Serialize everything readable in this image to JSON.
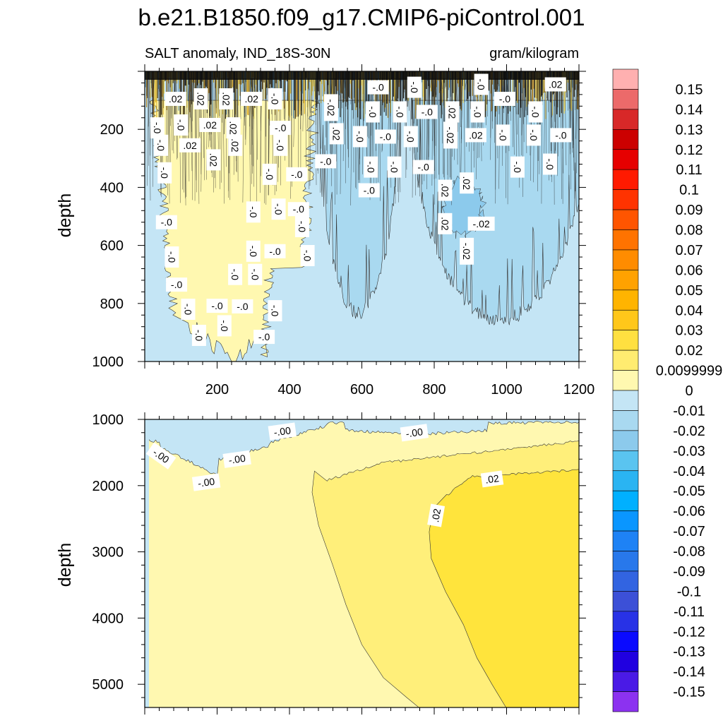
{
  "figure": {
    "title": "b.e21.B1850.f09_g17.CMIP6-piControl.001",
    "variable_label": "SALT anomaly, IND_18S-30N",
    "units_label": "gram/kilogram"
  },
  "chart_data": [
    {
      "type": "contour",
      "panel": "upper",
      "title": "SALT anomaly, IND_18S-30N",
      "units": "gram/kilogram",
      "xlabel": "",
      "ylabel": "depth",
      "xlim": [
        0,
        1200
      ],
      "ylim": [
        1000,
        0
      ],
      "x_ticks": [
        200,
        400,
        600,
        800,
        1000,
        1200
      ],
      "y_ticks": [
        200,
        400,
        600,
        800,
        1000
      ],
      "regions": [
        {
          "name": "background",
          "level": -0.01,
          "color": "#c4e5f5"
        },
        {
          "name": "surface-noise",
          "level": 0.02,
          "color": "#7a5a10",
          "depth_range": [
            0,
            100
          ]
        },
        {
          "name": "positive-left",
          "level": 0.0099999,
          "color": "#fff8b0",
          "x_range": [
            20,
            470
          ],
          "depth_range": [
            100,
            1000
          ]
        },
        {
          "name": "neg-mid",
          "level": -0.02,
          "color": "#a9d9f0",
          "x_range": [
            500,
            690
          ],
          "depth_range": [
            100,
            830
          ]
        },
        {
          "name": "neg-right",
          "level": -0.02,
          "color": "#a9d9f0",
          "x_range": [
            760,
            1200
          ],
          "depth_range": [
            100,
            860
          ]
        },
        {
          "name": "neg-right-core",
          "level": -0.03,
          "color": "#8ccaec",
          "x_range": [
            820,
            950
          ],
          "depth_range": [
            400,
            580
          ]
        }
      ],
      "contour_labels": [
        {
          "text": ".02",
          "x": 85,
          "depth": 95
        },
        {
          "text": ".02",
          "x": 155,
          "depth": 95
        },
        {
          "text": ".02",
          "x": 225,
          "depth": 95
        },
        {
          "text": ".02",
          "x": 295,
          "depth": 95
        },
        {
          "text": "-.0",
          "x": 360,
          "depth": 95
        },
        {
          "text": "-.02",
          "x": 515,
          "depth": 125
        },
        {
          "text": "-.0",
          "x": 645,
          "depth": 55
        },
        {
          "text": "-.0",
          "x": 745,
          "depth": 55
        },
        {
          "text": "-.0",
          "x": 930,
          "depth": 45
        },
        {
          "text": ".02",
          "x": 1135,
          "depth": 45
        },
        {
          "text": "-.0",
          "x": 35,
          "depth": 195
        },
        {
          "text": "-.0",
          "x": 100,
          "depth": 185
        },
        {
          "text": ".02",
          "x": 180,
          "depth": 185
        },
        {
          "text": ".02",
          "x": 245,
          "depth": 195
        },
        {
          "text": ".02",
          "x": 250,
          "depth": 255
        },
        {
          "text": "-.0",
          "x": 375,
          "depth": 195
        },
        {
          "text": "-.0",
          "x": 630,
          "depth": 140
        },
        {
          "text": "-.0",
          "x": 705,
          "depth": 140
        },
        {
          "text": "-.0",
          "x": 780,
          "depth": 140
        },
        {
          "text": ".02",
          "x": 850,
          "depth": 140
        },
        {
          "text": "-.0",
          "x": 920,
          "depth": 140
        },
        {
          "text": "-.0",
          "x": 995,
          "depth": 95
        },
        {
          "text": "-.0",
          "x": 1080,
          "depth": 140
        },
        {
          "text": "-.0",
          "x": 45,
          "depth": 255
        },
        {
          "text": ".02",
          "x": 125,
          "depth": 255
        },
        {
          "text": ".02",
          "x": 190,
          "depth": 305
        },
        {
          "text": "-.0",
          "x": 375,
          "depth": 255
        },
        {
          "text": "-.0",
          "x": 500,
          "depth": 310
        },
        {
          "text": ".02",
          "x": 530,
          "depth": 215
        },
        {
          "text": "-.0",
          "x": 595,
          "depth": 225
        },
        {
          "text": "-.0",
          "x": 665,
          "depth": 225
        },
        {
          "text": "-.0",
          "x": 735,
          "depth": 225
        },
        {
          "text": "-.02",
          "x": 845,
          "depth": 220
        },
        {
          "text": ".02",
          "x": 915,
          "depth": 220
        },
        {
          "text": "-.0",
          "x": 990,
          "depth": 220
        },
        {
          "text": "-.0",
          "x": 1075,
          "depth": 220
        },
        {
          "text": "-.0",
          "x": 1150,
          "depth": 220
        },
        {
          "text": "-.0",
          "x": 55,
          "depth": 350
        },
        {
          "text": "-.0",
          "x": 345,
          "depth": 355
        },
        {
          "text": "-.0",
          "x": 420,
          "depth": 355
        },
        {
          "text": "-.0",
          "x": 625,
          "depth": 330
        },
        {
          "text": "-.0",
          "x": 690,
          "depth": 330
        },
        {
          "text": "-.0",
          "x": 770,
          "depth": 330
        },
        {
          "text": "-.0",
          "x": 1030,
          "depth": 330
        },
        {
          "text": "-.0",
          "x": 1120,
          "depth": 320
        },
        {
          "text": "-.0",
          "x": 620,
          "depth": 410
        },
        {
          "text": ".02",
          "x": 830,
          "depth": 410
        },
        {
          "text": ".02",
          "x": 890,
          "depth": 385
        },
        {
          "text": "-.0",
          "x": 60,
          "depth": 520
        },
        {
          "text": "-.0",
          "x": 300,
          "depth": 485
        },
        {
          "text": "-.0",
          "x": 370,
          "depth": 475
        },
        {
          "text": "-.0",
          "x": 425,
          "depth": 475
        },
        {
          "text": "-.0",
          "x": 435,
          "depth": 535
        },
        {
          "text": ".02",
          "x": 830,
          "depth": 525
        },
        {
          "text": "-.02",
          "x": 930,
          "depth": 525
        },
        {
          "text": "-.0",
          "x": 75,
          "depth": 640
        },
        {
          "text": "-.0",
          "x": 300,
          "depth": 620
        },
        {
          "text": "-.0",
          "x": 360,
          "depth": 620
        },
        {
          "text": "-.0",
          "x": 450,
          "depth": 635
        },
        {
          "text": "-.02",
          "x": 890,
          "depth": 620
        },
        {
          "text": "-.0",
          "x": 88,
          "depth": 735
        },
        {
          "text": "-.0",
          "x": 250,
          "depth": 700
        },
        {
          "text": "-.0",
          "x": 305,
          "depth": 700
        },
        {
          "text": "-.0",
          "x": 270,
          "depth": 810
        },
        {
          "text": "-.0",
          "x": 360,
          "depth": 825
        },
        {
          "text": "-.0",
          "x": 120,
          "depth": 820
        },
        {
          "text": "-.0",
          "x": 200,
          "depth": 808
        },
        {
          "text": "-.0",
          "x": 220,
          "depth": 877
        },
        {
          "text": "-.0",
          "x": 150,
          "depth": 910
        },
        {
          "text": "-.0",
          "x": 330,
          "depth": 915
        }
      ]
    },
    {
      "type": "contour",
      "panel": "lower",
      "ylabel": "depth",
      "xlim": [
        0,
        1200
      ],
      "ylim": [
        5350,
        1000
      ],
      "y_ticks": [
        1000,
        2000,
        3000,
        4000,
        5000
      ],
      "regions": [
        {
          "name": "band-0.01",
          "level": 0.0099999,
          "color": "#fff8b0"
        },
        {
          "name": "shallow-negative",
          "level": -0.01,
          "color": "#c4e5f5",
          "x_range": [
            0,
            1200
          ],
          "depth_range": [
            1000,
            1870
          ]
        },
        {
          "name": "band-0.02",
          "level": 0.02,
          "color": "#ffef7a",
          "x_range": [
            460,
            1200
          ],
          "depth_range": [
            1300,
            5350
          ]
        },
        {
          "name": "band-0.03",
          "level": 0.03,
          "color": "#ffe43c",
          "x_range": [
            780,
            1200
          ],
          "depth_range": [
            1750,
            5350
          ]
        }
      ],
      "contour_labels": [
        {
          "text": "-.00",
          "x": 45,
          "depth": 1550
        },
        {
          "text": "-.00",
          "x": 170,
          "depth": 1950
        },
        {
          "text": "-.00",
          "x": 255,
          "depth": 1600
        },
        {
          "text": "-.00",
          "x": 380,
          "depth": 1180
        },
        {
          "text": "-.00",
          "x": 745,
          "depth": 1200
        },
        {
          "text": ".02",
          "x": 805,
          "depth": 2450
        },
        {
          "text": ".02",
          "x": 960,
          "depth": 1900
        }
      ]
    }
  ],
  "colorbar": {
    "labels": [
      "0.15",
      "0.14",
      "0.13",
      "0.12",
      "0.11",
      "0.1",
      "0.09",
      "0.08",
      "0.07",
      "0.06",
      "0.05",
      "0.04",
      "0.03",
      "0.02",
      "0.0099999",
      "0",
      "-0.01",
      "-0.02",
      "-0.03",
      "-0.04",
      "-0.05",
      "-0.06",
      "-0.07",
      "-0.08",
      "-0.09",
      "-0.1",
      "-0.11",
      "-0.12",
      "-0.13",
      "-0.14",
      "-0.15"
    ],
    "colors": [
      "#ffb0b0",
      "#ec6a6a",
      "#d82828",
      "#cc0000",
      "#e60000",
      "#ff1a00",
      "#ff3300",
      "#ff5500",
      "#ff7300",
      "#ff8c00",
      "#ffa200",
      "#ffb400",
      "#ffc71a",
      "#ffe040",
      "#ffec70",
      "#fff8b0",
      "#c4e5f5",
      "#a9d9f0",
      "#8ccaec",
      "#5ac4f0",
      "#2ab4f2",
      "#00b0ff",
      "#0a96ff",
      "#1e82f5",
      "#2878eb",
      "#3264e1",
      "#3c50d7",
      "#2832e6",
      "#0a0aff",
      "#2000e0",
      "#4a1ae6",
      "#8c32f0"
    ]
  }
}
